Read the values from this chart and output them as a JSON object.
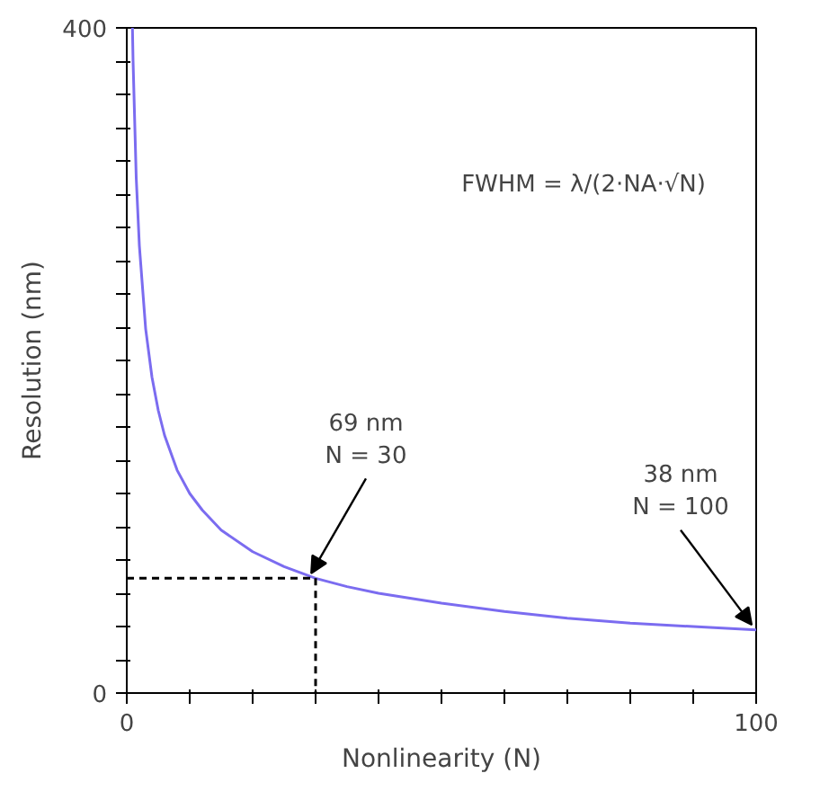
{
  "chart_data": {
    "type": "line",
    "xlabel": "Nonlinearity (N)",
    "ylabel": "Resolution (nm)",
    "xlim": [
      0,
      100
    ],
    "ylim": [
      0,
      400
    ],
    "xticks": [
      0,
      {
        "value": 10,
        "label": null
      },
      {
        "value": 20,
        "label": null
      },
      {
        "value": 30,
        "label": null
      },
      {
        "value": 40,
        "label": null
      },
      {
        "value": 50,
        "label": null
      },
      {
        "value": 60,
        "label": null
      },
      {
        "value": 70,
        "label": null
      },
      {
        "value": 80,
        "label": null
      },
      {
        "value": 90,
        "label": null
      },
      100
    ],
    "yticks": [
      0,
      {
        "value": 20,
        "label": null
      },
      {
        "value": 40,
        "label": null
      },
      {
        "value": 60,
        "label": null
      },
      {
        "value": 80,
        "label": null
      },
      {
        "value": 100,
        "label": null
      },
      {
        "value": 120,
        "label": null
      },
      {
        "value": 140,
        "label": null
      },
      {
        "value": 160,
        "label": null
      },
      {
        "value": 180,
        "label": null
      },
      {
        "value": 200,
        "label": null
      },
      {
        "value": 220,
        "label": null
      },
      {
        "value": 240,
        "label": null
      },
      {
        "value": 260,
        "label": null
      },
      {
        "value": 280,
        "label": null
      },
      {
        "value": 300,
        "label": null
      },
      {
        "value": 320,
        "label": null
      },
      {
        "value": 340,
        "label": null
      },
      {
        "value": 360,
        "label": null
      },
      {
        "value": 380,
        "label": null
      },
      400
    ],
    "series": [
      {
        "color": "#7b6cf0",
        "line_style": "solid",
        "x": [
          0.9,
          1,
          1.5,
          2,
          3,
          4,
          5,
          6,
          8,
          10,
          12,
          15,
          20,
          25,
          30,
          35,
          40,
          50,
          60,
          70,
          80,
          90,
          100
        ],
        "values": [
          400,
          380,
          310,
          269,
          219,
          190,
          170,
          155,
          134,
          120,
          110,
          98,
          85,
          76,
          69,
          64,
          60,
          54,
          49,
          45,
          42,
          40,
          38
        ]
      },
      {
        "color": "#000000",
        "line_style": "dashed",
        "x": [
          0,
          30,
          30
        ],
        "values": [
          69,
          69,
          0
        ]
      }
    ],
    "annotations": [
      "FWHM = λ/(2·NA·√N)",
      {
        "text": "69 nm\nN = 30",
        "x": 30,
        "y": 69
      },
      {
        "text": "38 nm\nN = 100",
        "x": 100,
        "y": 38
      }
    ],
    "grid": false
  }
}
